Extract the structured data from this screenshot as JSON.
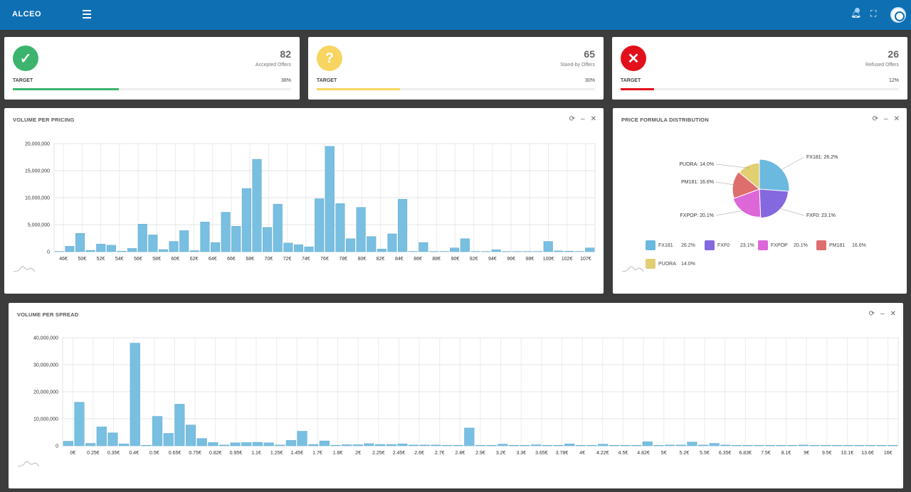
{
  "app": {
    "title": "ALCEO"
  },
  "header_icons": {
    "menu": "menu-icon",
    "bell": "bell-icon",
    "expand": "expand-icon",
    "avatar": "avatar"
  },
  "stats": [
    {
      "value": "82",
      "label": "Accepted Offers",
      "target_label": "TARGET",
      "percent": "38%",
      "progress": 0.38,
      "color": "#3cb46e",
      "glyph": "✓",
      "icon": "check-icon"
    },
    {
      "value": "65",
      "label": "Stand-by Offers",
      "target_label": "TARGET",
      "percent": "30%",
      "progress": 0.3,
      "color": "#f7d560",
      "glyph": "?",
      "icon": "question-icon"
    },
    {
      "value": "26",
      "label": "Refused Offers",
      "target_label": "TARGET",
      "percent": "12%",
      "progress": 0.12,
      "color": "#e2101b",
      "glyph": "✕",
      "icon": "x-icon"
    }
  ],
  "panels": {
    "pricing": {
      "title": "VOLUME PER PRICING"
    },
    "formula": {
      "title": "PRICE FORMULA DISTRIBUTION"
    },
    "spread": {
      "title": "VOLUME PER SPREAD"
    }
  },
  "panel_controls": {
    "refresh": "⟳",
    "minimize": "–",
    "close": "✕"
  },
  "chart_data": [
    {
      "type": "bar",
      "title": "VOLUME PER PRICING",
      "ylim": [
        0,
        20000000
      ],
      "yticks": [
        0,
        5000000,
        10000000,
        15000000,
        20000000
      ],
      "ytick_labels": [
        "0",
        "5,000,000",
        "10,000,000",
        "15,000,000",
        "20,000,000"
      ],
      "xtick_labels": [
        "46€",
        "50€",
        "52€",
        "54€",
        "56€",
        "58€",
        "60€",
        "62€",
        "64€",
        "66€",
        "68€",
        "70€",
        "72€",
        "74€",
        "76€",
        "78€",
        "80€",
        "82€",
        "84€",
        "86€",
        "88€",
        "90€",
        "92€",
        "94€",
        "96€",
        "98€",
        "100€",
        "102€",
        "107€"
      ],
      "values": [
        50000,
        1000000,
        3400000,
        250000,
        1400000,
        1200000,
        100000,
        600000,
        5100000,
        3100000,
        400000,
        1900000,
        3900000,
        200000,
        5500000,
        1700000,
        7300000,
        4700000,
        11700000,
        17100000,
        4500000,
        8800000,
        1600000,
        1300000,
        900000,
        9800000,
        19500000,
        8900000,
        2400000,
        8200000,
        2800000,
        500000,
        3300000,
        9700000,
        50000,
        1700000,
        50000,
        50000,
        700000,
        2400000,
        50000,
        50000,
        350000,
        50000,
        50000,
        50000,
        50000,
        1900000,
        150000,
        100000,
        50000,
        700000
      ],
      "grid": true,
      "color": "#78bfe1"
    },
    {
      "type": "pie",
      "title": "PRICE FORMULA DISTRIBUTION",
      "labels": [
        "FX181",
        "FXF0",
        "FXPOP",
        "PM181",
        "PUORA"
      ],
      "values": [
        26.2,
        23.1,
        20.1,
        16.6,
        14.0
      ],
      "value_labels": [
        "26.2%",
        "23.1%",
        "20.1%",
        "16.6%",
        "14.0%"
      ],
      "callouts": [
        "FX181: 26.2%",
        "FXF0: 23.1%",
        "FXPOP: 20.1%",
        "PM181: 16.6%",
        "PUORA: 14.0%"
      ],
      "colors": [
        "#6bb9df",
        "#8468df",
        "#dc67d8",
        "#de6e6e",
        "#e1cf72"
      ],
      "legend": "bottom"
    },
    {
      "type": "bar",
      "title": "VOLUME PER SPREAD",
      "ylim": [
        0,
        40000000
      ],
      "yticks": [
        0,
        10000000,
        20000000,
        30000000,
        40000000
      ],
      "ytick_labels": [
        "0",
        "10,000,000",
        "20,000,000",
        "30,000,000",
        "40,000,000"
      ],
      "xtick_labels": [
        "0€",
        "0.25€",
        "0.35€",
        "0.4€",
        "0.5€",
        "0.65€",
        "0.75€",
        "0.82€",
        "0.95€",
        "1.1€",
        "1.25€",
        "1.45€",
        "1.7€",
        "1.8€",
        "2€",
        "2.25€",
        "2.45€",
        "2.6€",
        "2.7€",
        "2.8€",
        "2.9€",
        "3.2€",
        "3.3€",
        "3.65€",
        "3.78€",
        "4€",
        "4.22€",
        "4.5€",
        "4.82€",
        "5€",
        "5.2€",
        "5.5€",
        "6.35€",
        "6.83€",
        "7.5€",
        "8.1€",
        "9€",
        "9.5€",
        "10.1€",
        "13.6€",
        "16€"
      ],
      "values": [
        1700000,
        16100000,
        900000,
        7000000,
        4800000,
        700000,
        38000000,
        200000,
        10900000,
        4600000,
        15400000,
        7700000,
        2700000,
        1200000,
        300000,
        1100000,
        1200000,
        1300000,
        1100000,
        300000,
        2000000,
        5400000,
        500000,
        1800000,
        200000,
        400000,
        400000,
        800000,
        500000,
        500000,
        700000,
        300000,
        300000,
        300000,
        200000,
        200000,
        6600000,
        200000,
        200000,
        600000,
        200000,
        200000,
        400000,
        200000,
        200000,
        700000,
        200000,
        200000,
        600000,
        200000,
        200000,
        200000,
        1500000,
        200000,
        300000,
        300000,
        1400000,
        300000,
        900000,
        300000,
        200000,
        200000,
        200000,
        200000,
        200000,
        200000,
        300000,
        200000,
        200000,
        200000,
        200000,
        200000,
        200000,
        200000,
        200000
      ],
      "grid": true,
      "color": "#78bfe1"
    }
  ]
}
